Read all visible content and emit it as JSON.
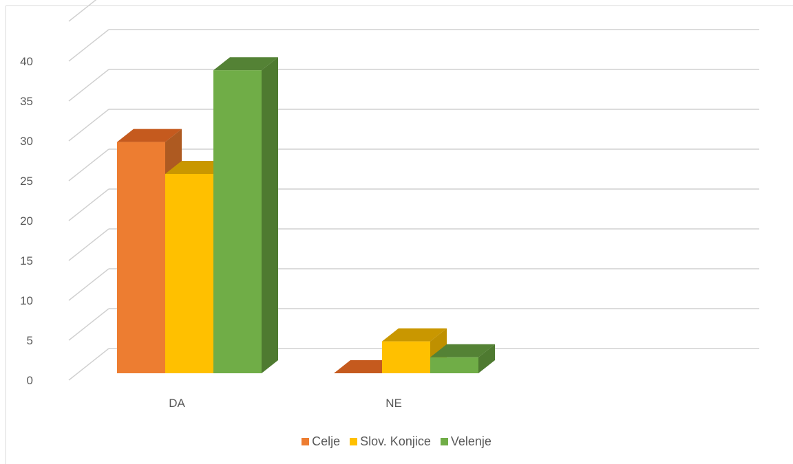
{
  "chart_data": {
    "type": "bar",
    "style": "3d-clustered-column",
    "categories": [
      "DA",
      "NE"
    ],
    "series": [
      {
        "name": "Celje",
        "values": [
          29,
          0
        ],
        "color": "#ED7D31",
        "side_color": "#AE5A21",
        "top_color": "#C55A1E"
      },
      {
        "name": "Slov. Konjice",
        "values": [
          25,
          4
        ],
        "color": "#FFC000",
        "side_color": "#BF9000",
        "top_color": "#C99700"
      },
      {
        "name": "Velenje",
        "values": [
          38,
          2
        ],
        "color": "#70AD47",
        "side_color": "#4E7A30",
        "top_color": "#548235"
      }
    ],
    "yticks": [
      "0",
      "5",
      "10",
      "15",
      "20",
      "25",
      "30",
      "35",
      "40"
    ],
    "ylim": [
      0,
      45
    ],
    "grid": true,
    "legend_position": "bottom",
    "title": "",
    "xlabel": "",
    "ylabel": ""
  }
}
